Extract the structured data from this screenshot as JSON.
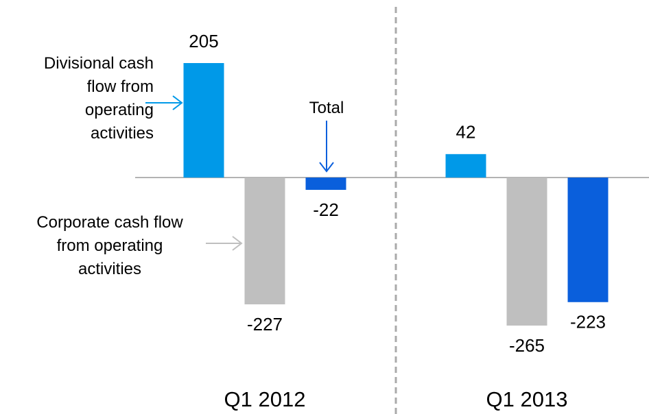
{
  "chart_data": {
    "type": "bar",
    "categories": [
      "Q1 2012",
      "Q1 2013"
    ],
    "series": [
      {
        "name": "Divisional cash flow from operating activities",
        "color": "#0099e8",
        "values": [
          205,
          42
        ]
      },
      {
        "name": "Corporate cash flow from operating activities",
        "color": "#bfbfbf",
        "values": [
          -227,
          -265
        ]
      },
      {
        "name": "Total",
        "color": "#0a5fdc",
        "values": [
          -22,
          -223
        ]
      }
    ]
  }
}
